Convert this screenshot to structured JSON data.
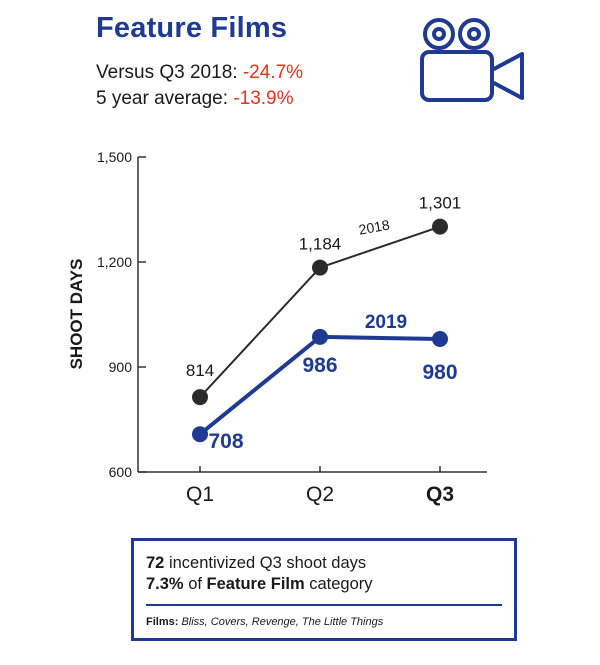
{
  "header": {
    "title": "Feature Films",
    "stat1_label": "Versus Q3 2018: ",
    "stat1_value": "-24.7%",
    "stat2_label": "5 year average: ",
    "stat2_value": "-13.9%"
  },
  "icons": {
    "camera": "video-camera-icon"
  },
  "colors": {
    "brand_blue": "#1f3a93",
    "series_2018": "#2b2b2b",
    "negative_red": "#e8301c"
  },
  "chart_data": {
    "type": "line",
    "ylabel": "SHOOT DAYS",
    "xlabel": "",
    "categories": [
      "Q1",
      "Q2",
      "Q3"
    ],
    "ylim": [
      600,
      1500
    ],
    "yticks": [
      600,
      900,
      1200,
      1500
    ],
    "ytick_labels": [
      "600",
      "900",
      "1,200",
      "1,500"
    ],
    "grid": false,
    "series": [
      {
        "name": "2018",
        "values": [
          814,
          1184,
          1301
        ],
        "labels": [
          "814",
          "1,184",
          "1,301"
        ],
        "color": "#2b2b2b"
      },
      {
        "name": "2019",
        "values": [
          708,
          986,
          980
        ],
        "labels": [
          "708",
          "986",
          "980"
        ],
        "color": "#1f3a93"
      }
    ]
  },
  "info": {
    "line1_bold": "72",
    "line1_text": " incentivized Q3 shoot days",
    "line2_bold_pct": "7.3%",
    "line2_text": " of ",
    "line2_bold_cat": "Feature Film",
    "line2_tail": " category",
    "films_label": "Films:",
    "films_list": " Bliss, Covers, Revenge, The Little Things"
  }
}
